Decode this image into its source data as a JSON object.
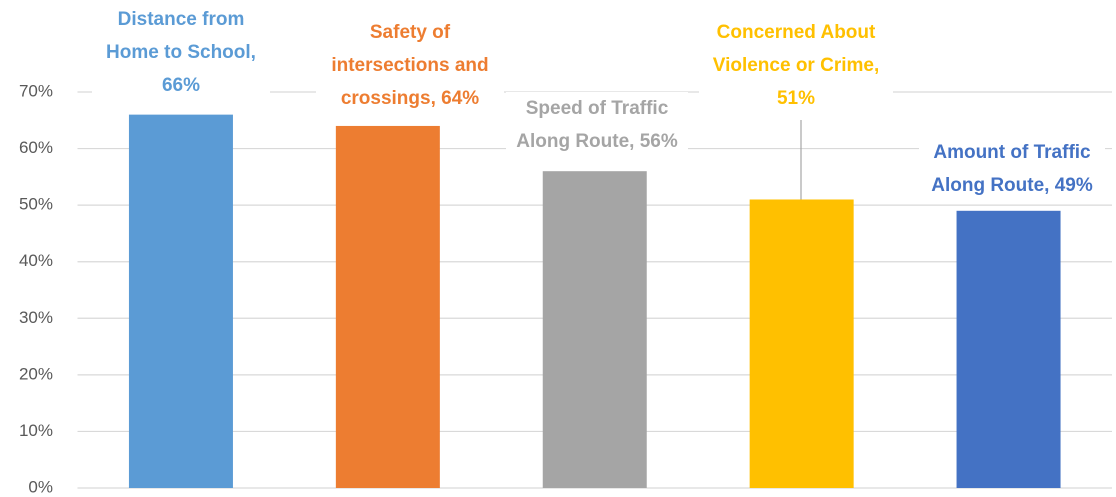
{
  "chart_data": {
    "type": "bar",
    "values": [
      66,
      64,
      56,
      51,
      49
    ],
    "value_labels": [
      "Distance from Home to School, 66%",
      "Safety of intersections and crossings, 64%",
      "Speed of Traffic Along Route, 56%",
      "Concerned About Violence or Crime, 51%",
      "Amount of Traffic Along Route, 49%"
    ],
    "colors": [
      "#5b9bd5",
      "#ed7d31",
      "#a5a5a5",
      "#ffc000",
      "#4472c4"
    ],
    "ylim": [
      0,
      70
    ],
    "yticks": [
      {
        "value": 0,
        "label": "0%"
      },
      {
        "value": 10,
        "label": "10%"
      },
      {
        "value": 20,
        "label": "20%"
      },
      {
        "value": 30,
        "label": "30%"
      },
      {
        "value": 40,
        "label": "40%"
      },
      {
        "value": 50,
        "label": "50%"
      },
      {
        "value": 60,
        "label": "60%"
      },
      {
        "value": 70,
        "label": "70%"
      }
    ],
    "grid": true
  }
}
